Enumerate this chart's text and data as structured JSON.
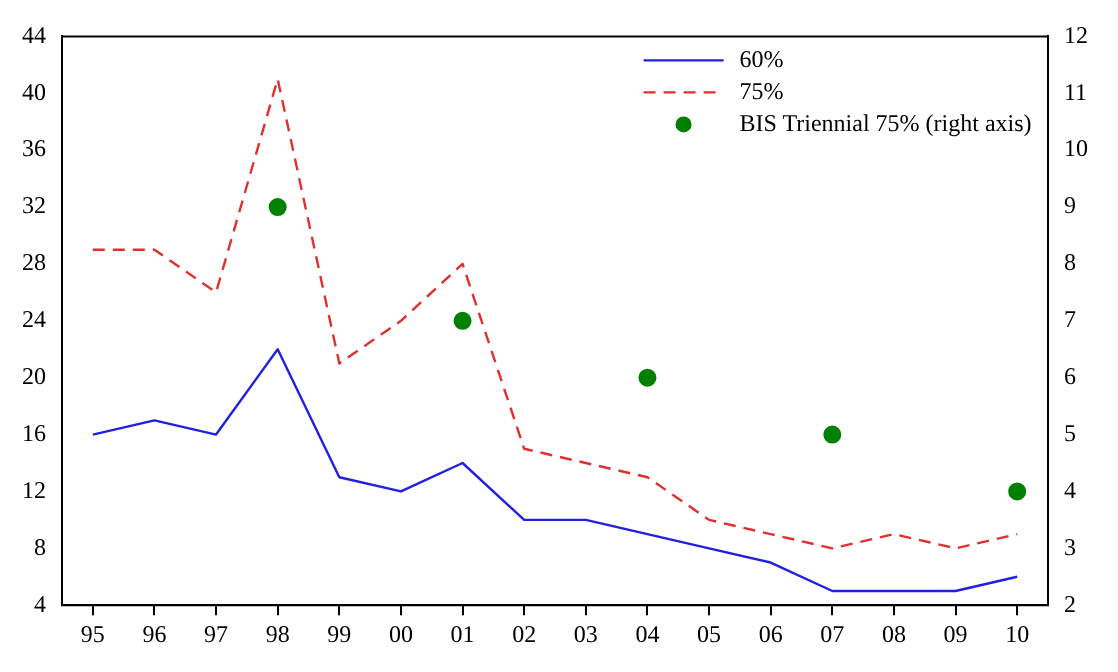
{
  "chart_data": {
    "type": "line",
    "categories": [
      "95",
      "96",
      "97",
      "98",
      "99",
      "00",
      "01",
      "02",
      "03",
      "04",
      "05",
      "06",
      "07",
      "08",
      "09",
      "10"
    ],
    "series": [
      {
        "name": "60%",
        "color": "#2020e0",
        "type": "line",
        "line_style": "solid",
        "marker": "none",
        "values": [
          16,
          17,
          16,
          22,
          13,
          12,
          14,
          10,
          10,
          9,
          8,
          7,
          5,
          5,
          5,
          6
        ]
      },
      {
        "name": "75%",
        "color": "#e03030",
        "type": "line",
        "line_style": "dashed",
        "marker": "none",
        "values": [
          29,
          29,
          26,
          41,
          21,
          24,
          28,
          15,
          14,
          13,
          10,
          9,
          8,
          9,
          8,
          9
        ]
      },
      {
        "name": "BIS Triennial 75% (right axis)",
        "color": "#008000",
        "type": "scatter",
        "marker": "circle",
        "axis": "y2",
        "values": [
          null,
          null,
          null,
          9,
          null,
          null,
          7,
          null,
          null,
          6,
          null,
          null,
          5,
          null,
          null,
          4
        ]
      }
    ],
    "ylim": [
      4,
      44
    ],
    "yticks": [
      4,
      8,
      12,
      16,
      20,
      24,
      28,
      32,
      36,
      40,
      44
    ],
    "y2lim": [
      2,
      12
    ],
    "y2ticks": [
      2,
      3,
      4,
      5,
      6,
      7,
      8,
      9,
      10,
      11,
      12
    ],
    "grid": false,
    "legend": "top right"
  }
}
